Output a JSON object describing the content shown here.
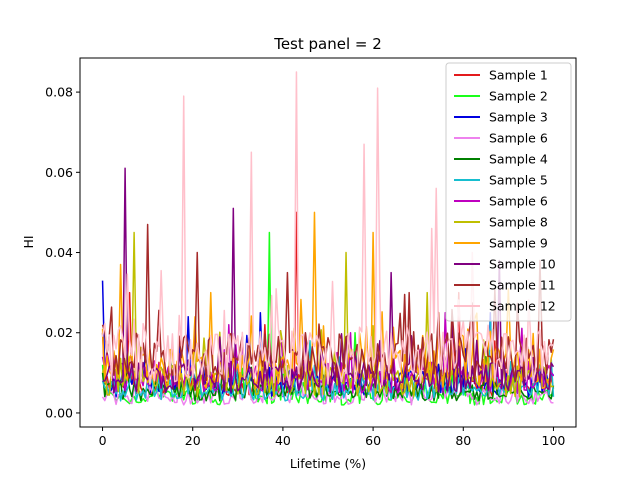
{
  "chart_data": {
    "type": "line",
    "title": "Test panel = 2",
    "xlabel": "Lifetime (%)",
    "ylabel": "HI",
    "xlim": [
      -5,
      105
    ],
    "ylim": [
      -0.0035,
      0.0885
    ],
    "xticks": [
      0,
      20,
      40,
      60,
      80,
      100
    ],
    "xtick_labels": [
      "0",
      "20",
      "40",
      "60",
      "80",
      "100"
    ],
    "yticks": [
      0.0,
      0.02,
      0.04,
      0.06,
      0.08
    ],
    "ytick_labels": [
      "0.00",
      "0.02",
      "0.04",
      "0.06",
      "0.08"
    ],
    "grid": false,
    "legend_position": "top-right",
    "series": [
      {
        "name": "Sample 1",
        "color": "#e31a1c",
        "base": 0.004,
        "amp": 0.006,
        "spikes": [
          [
            6,
            0.03
          ],
          [
            36,
            0.022
          ],
          [
            43,
            0.05
          ],
          [
            79,
            0.03
          ],
          [
            90,
            0.012
          ]
        ],
        "start": 0.02
      },
      {
        "name": "Sample 2",
        "color": "#1aff1a",
        "base": 0.002,
        "amp": 0.004,
        "spikes": [
          [
            37,
            0.045
          ],
          [
            56,
            0.02
          ],
          [
            91,
            0.01
          ]
        ],
        "start": 0.012
      },
      {
        "name": "Sample 3",
        "color": "#0000e0",
        "base": 0.004,
        "amp": 0.007,
        "spikes": [
          [
            0,
            0.033
          ],
          [
            19,
            0.024
          ],
          [
            35,
            0.025
          ],
          [
            86,
            0.025
          ]
        ],
        "start": 0.033
      },
      {
        "name": "Sample 6",
        "color": "#ee82ee",
        "base": 0.002,
        "amp": 0.004,
        "spikes": [
          [
            30,
            0.01
          ],
          [
            75,
            0.012
          ]
        ],
        "start": 0.004
      },
      {
        "name": "Sample 4",
        "color": "#008000",
        "base": 0.003,
        "amp": 0.005,
        "spikes": [
          [
            15,
            0.015
          ],
          [
            85,
            0.014
          ]
        ],
        "start": 0.01
      },
      {
        "name": "Sample 5",
        "color": "#17becf",
        "base": 0.003,
        "amp": 0.006,
        "spikes": [
          [
            46,
            0.018
          ],
          [
            86,
            0.023
          ]
        ],
        "start": 0.008
      },
      {
        "name": "Sample 6",
        "color": "#bf00bf",
        "base": 0.005,
        "amp": 0.008,
        "spikes": [
          [
            28,
            0.022
          ],
          [
            55,
            0.02
          ],
          [
            76,
            0.025
          ]
        ],
        "start": 0.014
      },
      {
        "name": "Sample 8",
        "color": "#bfbf00",
        "base": 0.004,
        "amp": 0.008,
        "spikes": [
          [
            7,
            0.045
          ],
          [
            54,
            0.04
          ],
          [
            72,
            0.03
          ]
        ],
        "start": 0.01
      },
      {
        "name": "Sample 9",
        "color": "#ffa500",
        "base": 0.006,
        "amp": 0.01,
        "spikes": [
          [
            4,
            0.037
          ],
          [
            24,
            0.03
          ],
          [
            47,
            0.05
          ],
          [
            60,
            0.045
          ],
          [
            90,
            0.031
          ]
        ],
        "start": 0.021
      },
      {
        "name": "Sample 10",
        "color": "#800080",
        "base": 0.005,
        "amp": 0.008,
        "spikes": [
          [
            5,
            0.061
          ],
          [
            29,
            0.051
          ],
          [
            64,
            0.035
          ],
          [
            88,
            0.038
          ]
        ],
        "start": 0.008
      },
      {
        "name": "Sample 11",
        "color": "#a52a2a",
        "base": 0.008,
        "amp": 0.012,
        "spikes": [
          [
            10,
            0.047
          ],
          [
            21,
            0.04
          ],
          [
            41,
            0.035
          ],
          [
            68,
            0.03
          ],
          [
            97,
            0.038
          ]
        ],
        "start": 0.022
      },
      {
        "name": "Sample 12",
        "color": "#ffc0cb",
        "base": 0.007,
        "amp": 0.014,
        "spikes": [
          [
            18,
            0.079
          ],
          [
            33,
            0.065
          ],
          [
            43,
            0.085
          ],
          [
            58,
            0.067
          ],
          [
            61,
            0.081
          ],
          [
            73,
            0.046
          ],
          [
            74,
            0.056
          ],
          [
            82,
            0.04
          ]
        ],
        "start": 0.019
      }
    ]
  }
}
